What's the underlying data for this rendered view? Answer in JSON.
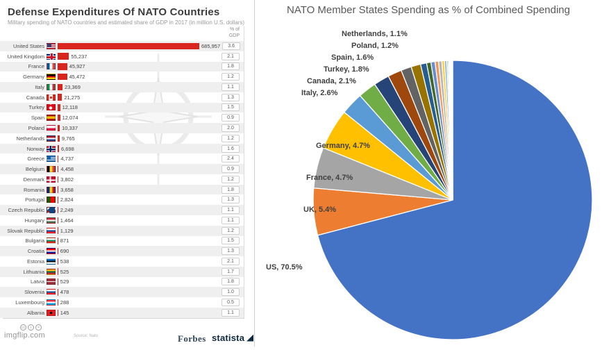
{
  "watermark": "imgflip.com",
  "footer": {
    "forbes": "Forbes",
    "statista": "statista",
    "source": "Source: Nato",
    "cc_glyphs": [
      "cc",
      "i",
      "="
    ]
  },
  "left_chart": {
    "gdp_header_line1": "% of",
    "gdp_header_line2": "GDP",
    "flag_css": [
      "linear-gradient(90deg,#3c3b6e 6px,rgba(0,0,0,0) 6px) 0 0/13px 5px no-repeat,repeating-linear-gradient(180deg,#b22234 0 1px,#fff 1px 2px)",
      "linear-gradient(180deg,rgba(0,0,0,0) 3px,#cf142b 3px 6px,rgba(0,0,0,0) 6px),linear-gradient(90deg,rgba(0,0,0,0) 5px,#cf142b 5px 8px,rgba(0,0,0,0) 8px),linear-gradient(180deg,rgba(0,0,0,0) 2px,#fff 2px 7px,rgba(0,0,0,0) 7px),linear-gradient(90deg,rgba(0,0,0,0) 4px,#fff 4px 9px,rgba(0,0,0,0) 9px) #00247d",
      "linear-gradient(90deg,#0055a4 33%,#fff 33% 66%,#ef4135 66%)",
      "linear-gradient(180deg,#000 33%,#dd0000 33% 66%,#ffce00 66%)",
      "linear-gradient(90deg,#009246 33%,#fff 33% 66%,#ce2b37 66%)",
      "radial-gradient(circle at 50% 50%,#d52b1e 1.5px,rgba(0,0,0,0) 2px),linear-gradient(90deg,#d52b1e 25%,#fff 25% 75%,#d52b1e 75%)",
      "radial-gradient(circle at 5px 4.5px,#fff 2px,rgba(0,0,0,0) 2.5px) #e30a17",
      "linear-gradient(180deg,#aa151b 25%,#f1bf00 25% 75%,#aa151b 75%)",
      "linear-gradient(180deg,#fff 50%,#dc143c 50%)",
      "linear-gradient(180deg,#ae1c28 33%,#fff 33% 66%,#21468b 66%)",
      "linear-gradient(180deg,rgba(0,0,0,0) 3px,#002868 3px 5.5px,rgba(0,0,0,0) 5.5px),linear-gradient(90deg,rgba(0,0,0,0) 3.5px,#002868 3.5px 6px,rgba(0,0,0,0) 6px),linear-gradient(180deg,rgba(0,0,0,0) 2px,#fff 2px 6.5px,rgba(0,0,0,0) 6.5px),linear-gradient(90deg,rgba(0,0,0,0) 2.5px,#fff 2.5px 7px,rgba(0,0,0,0) 7px) #ba0c2f",
      "linear-gradient(90deg,#0d5eaf 5px,rgba(0,0,0,0) 5px) 0 0/13px 5px no-repeat,repeating-linear-gradient(180deg,#0d5eaf 0 1px,#fff 1px 2px)",
      "linear-gradient(90deg,#000 33%,#fdda24 33% 66%,#ef3340 66%)",
      "linear-gradient(180deg,rgba(0,0,0,0) 3.5px,#fff 3.5px 5.5px,rgba(0,0,0,0) 5.5px),linear-gradient(90deg,rgba(0,0,0,0) 3.5px,#fff 3.5px 5.5px,rgba(0,0,0,0) 5.5px) #c8102e",
      "linear-gradient(90deg,#002b7f 33%,#fcd116 33% 66%,#ce1126 66%)",
      "linear-gradient(90deg,#006600 40%,#ff0000 40%)",
      "conic-gradient(at 0% 50%,rgba(0,0,0,0) 0 45deg,#11457e 45deg 135deg,rgba(0,0,0,0) 135deg),linear-gradient(180deg,#fff 50%,#d7141a 50%)",
      "linear-gradient(180deg,#ce2939 33%,#fff 33% 66%,#477050 66%)",
      "linear-gradient(180deg,#fff 33%,#0b4ea2 33% 66%,#ee1c25 66%)",
      "linear-gradient(180deg,#fff 33%,#00966e 33% 66%,#d62612 66%)",
      "linear-gradient(180deg,#ff0000 33%,#fff 33% 66%,#171796 66%)",
      "linear-gradient(180deg,#0072ce 33%,#000 33% 66%,#fff 66%)",
      "linear-gradient(180deg,#fdb913 33%,#006a44 33% 66%,#c1272d 66%)",
      "linear-gradient(180deg,#9e3039 40%,#fff 40% 60%,#9e3039 60%)",
      "linear-gradient(180deg,#fff 33%,#005da4 33% 66%,#ed1c24 66%)",
      "linear-gradient(180deg,#ef3340 33%,#fff 33% 66%,#00a2e1 66%)",
      "radial-gradient(circle at 50% 50%,#000 1.5px,rgba(0,0,0,0) 2px) #e41e20"
    ]
  },
  "chart_data": [
    {
      "type": "bar",
      "title": "Defense Expenditures Of NATO Countries",
      "subtitle": "Military spending of NATO countries and estimated share of GDP in 2017 (in million U.S. dollars)",
      "orientation": "horizontal",
      "bar_color": "#d9251d",
      "row_alt_color": "#efefef",
      "xlabel": "",
      "ylabel": "",
      "value_column_header": "% of GDP",
      "categories": [
        "United States",
        "United Kingdom",
        "France",
        "Germany",
        "Italy",
        "Canada",
        "Turkey",
        "Spain",
        "Poland",
        "Netherlands",
        "Norway",
        "Greece",
        "Belgium",
        "Denmark",
        "Romania",
        "Portugal",
        "Czech Republic",
        "Hungary",
        "Slovak Republic",
        "Bulgaria",
        "Croatia",
        "Estonia",
        "Lithuania",
        "Latvia",
        "Slovenia",
        "Luxembourg",
        "Albania"
      ],
      "values": [
        685957,
        55237,
        45927,
        45472,
        23369,
        21275,
        12118,
        12074,
        10337,
        9765,
        6698,
        4737,
        4458,
        3802,
        3658,
        2824,
        2249,
        1464,
        1129,
        871,
        690,
        538,
        525,
        529,
        478,
        288,
        145
      ],
      "value_labels": [
        "685,957",
        "55,237",
        "45,927",
        "45,472",
        "23,369",
        "21,275",
        "12,118",
        "12,074",
        "10,337",
        "9,765",
        "6,698",
        "4,737",
        "4,458",
        "3,802",
        "3,658",
        "2,824",
        "2,249",
        "1,464",
        "1,129",
        "871",
        "690",
        "538",
        "525",
        "529",
        "478",
        "288",
        "145"
      ],
      "gdp_pct": [
        "3.6",
        "2.1",
        "1.8",
        "1.2",
        "1.1",
        "1.3",
        "1.5",
        "0.9",
        "2.0",
        "1.2",
        "1.6",
        "2.4",
        "0.9",
        "1.2",
        "1.8",
        "1.3",
        "1.1",
        "1.1",
        "1.2",
        "1.5",
        "1.3",
        "2.1",
        "1.7",
        "1.8",
        "1.0",
        "0.5",
        "1.1"
      ]
    },
    {
      "type": "pie",
      "title": "NATO Member States Spending as % of Combined Spending",
      "start_angle_deg": -90,
      "direction": "clockwise",
      "labels": [
        "US",
        "UK",
        "France",
        "Germany",
        "Italy",
        "Canada",
        "Turkey",
        "Spain",
        "Poland",
        "Netherlands",
        "Norway",
        "Greece",
        "Belgium",
        "Denmark",
        "Romania",
        "Portugal",
        "Czech Republic",
        "Hungary",
        "Slovak Republic",
        "Bulgaria",
        "Croatia",
        "Estonia",
        "Lithuania",
        "Latvia",
        "Slovenia",
        "Luxembourg",
        "Albania"
      ],
      "values": [
        70.5,
        5.4,
        4.7,
        4.7,
        2.6,
        2.1,
        1.8,
        1.6,
        1.2,
        1.1,
        0.7,
        0.5,
        0.47,
        0.4,
        0.38,
        0.3,
        0.24,
        0.15,
        0.12,
        0.09,
        0.07,
        0.06,
        0.055,
        0.055,
        0.05,
        0.03,
        0.015
      ],
      "colors": [
        "#4472C4",
        "#ED7D31",
        "#A5A5A5",
        "#FFC000",
        "#5B9BD5",
        "#70AD47",
        "#264478",
        "#9E480E",
        "#636363",
        "#997300",
        "#255E91",
        "#43682B",
        "#698ED0",
        "#F1975A",
        "#B7B7B7",
        "#FFCD33",
        "#7CAFDD",
        "#8CC168",
        "#335AA1",
        "#CB6A15",
        "#848484",
        "#CC9A00",
        "#327DBE",
        "#5A8A39",
        "#8FAADC",
        "#F4B183",
        "#CFCFCF"
      ],
      "label_texts": [
        "US, 70.5%",
        "UK, 5.4%",
        "France, 4.7%",
        "Germany, 4.7%",
        "Italy, 2.6%",
        "Canada, 2.1%",
        "Turkey, 1.8%",
        "Spain, 1.6%",
        "Poland, 1.2%",
        "Netherlands, 1.1%"
      ],
      "legend_position": "none",
      "grid": false
    }
  ]
}
